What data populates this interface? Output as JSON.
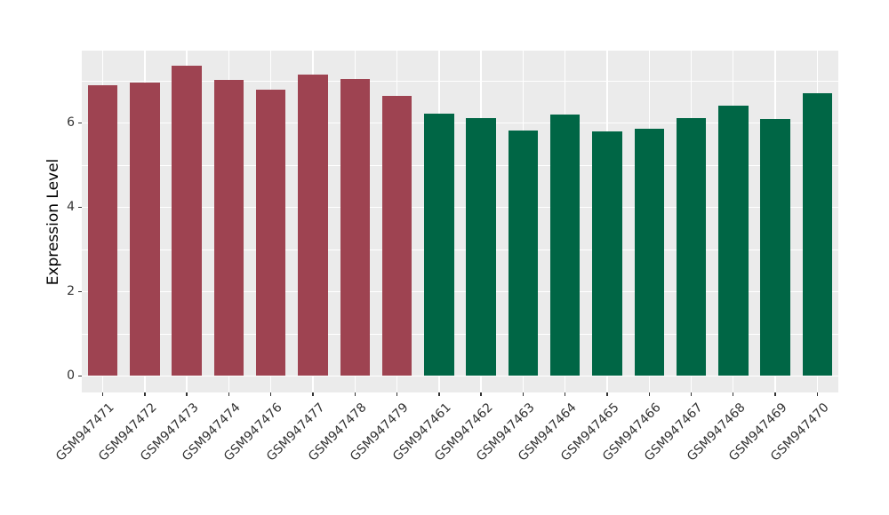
{
  "chart_data": {
    "type": "bar",
    "categories": [
      "GSM947471",
      "GSM947472",
      "GSM947473",
      "GSM947474",
      "GSM947476",
      "GSM947477",
      "GSM947478",
      "GSM947479",
      "GSM947461",
      "GSM947462",
      "GSM947463",
      "GSM947464",
      "GSM947465",
      "GSM947466",
      "GSM947467",
      "GSM947468",
      "GSM947469",
      "GSM947470"
    ],
    "values": [
      6.88,
      6.95,
      7.35,
      7.01,
      6.77,
      7.14,
      7.04,
      6.64,
      6.22,
      6.11,
      5.82,
      6.18,
      5.8,
      5.85,
      6.1,
      6.41,
      6.09,
      6.69
    ],
    "bar_colors": [
      "#9E4351",
      "#9E4351",
      "#9E4351",
      "#9E4351",
      "#9E4351",
      "#9E4351",
      "#9E4351",
      "#9E4351",
      "#006645",
      "#006645",
      "#006645",
      "#006645",
      "#006645",
      "#006645",
      "#006645",
      "#006645",
      "#006645",
      "#006645"
    ],
    "groups": [
      {
        "name": "maroon-group",
        "color": "#9E4351",
        "categories": [
          "GSM947471",
          "GSM947472",
          "GSM947473",
          "GSM947474",
          "GSM947476",
          "GSM947477",
          "GSM947478",
          "GSM947479"
        ]
      },
      {
        "name": "green-group",
        "color": "#006645",
        "categories": [
          "GSM947461",
          "GSM947462",
          "GSM947463",
          "GSM947464",
          "GSM947465",
          "GSM947466",
          "GSM947467",
          "GSM947468",
          "GSM947469",
          "GSM947470"
        ]
      }
    ],
    "title": "",
    "xlabel": "",
    "ylabel": "Expression Level",
    "ylim": [
      0,
      7.7
    ],
    "yticks": [
      0,
      2,
      4,
      6
    ],
    "yticks_minor": [
      1,
      3,
      5,
      7
    ],
    "grid": true,
    "legend": "none",
    "panel_bg": "#EBEBEB",
    "grid_color": "#FFFFFF",
    "tick_text_color": "#333333"
  }
}
